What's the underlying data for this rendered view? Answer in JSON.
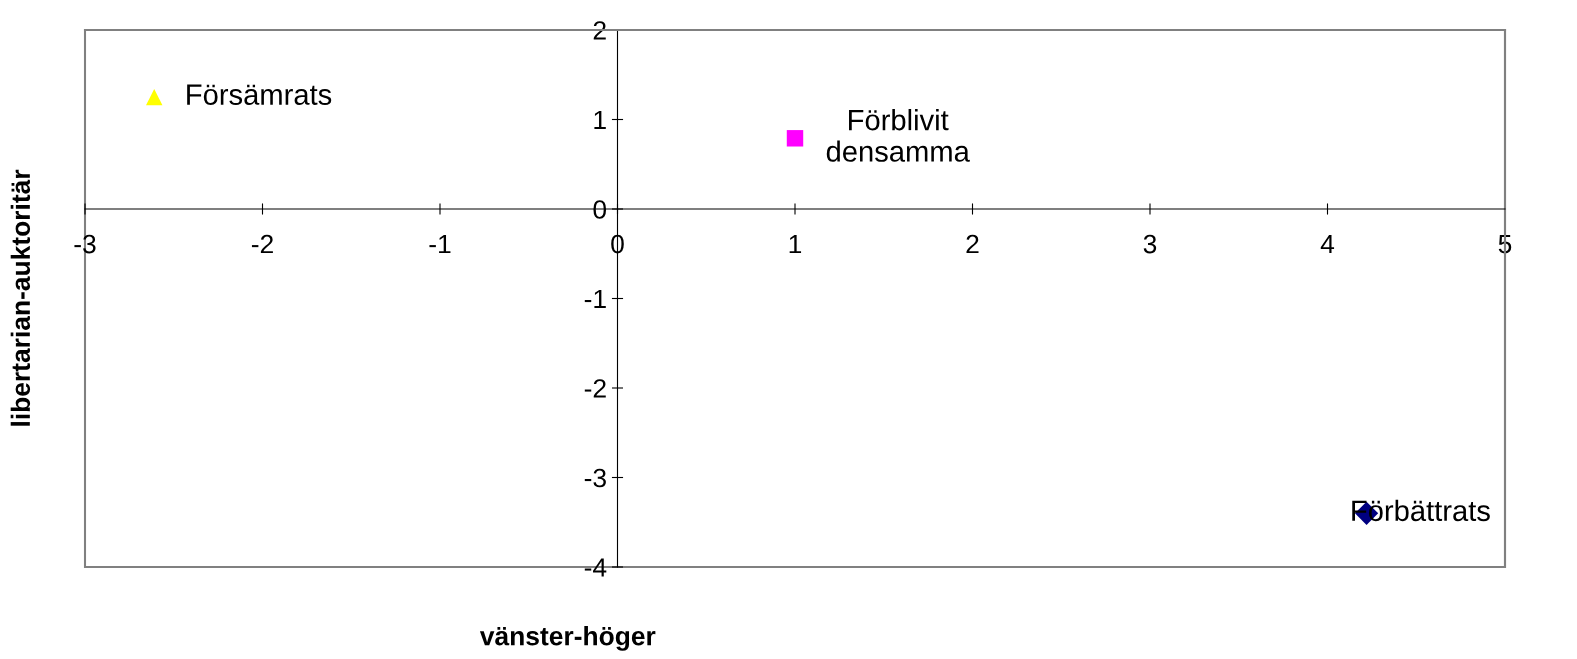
{
  "chart_data": {
    "type": "scatter",
    "xlabel": "vänster-höger",
    "ylabel": "libertarian-auktoritär",
    "xlim": [
      -3,
      5
    ],
    "xticks": [
      -3,
      -2,
      -1,
      0,
      1,
      2,
      3,
      4,
      5
    ],
    "ylim": [
      -4,
      2
    ],
    "yticks": [
      -4,
      -3,
      -2,
      -1,
      0,
      1,
      2
    ],
    "grid": false,
    "legend": false,
    "series": [
      {
        "name": "Försämrats",
        "color": "#ffff00",
        "marker": "triangle",
        "x": [
          -2.61
        ],
        "values": [
          1.25
        ]
      },
      {
        "name": "Förblivit\ndensamma",
        "color": "#ff00ff",
        "marker": "square",
        "x": [
          1.0
        ],
        "values": [
          0.79
        ]
      },
      {
        "name": "Förbättrats",
        "color": "#000080",
        "marker": "diamond",
        "x": [
          4.22
        ],
        "values": [
          -3.4
        ]
      }
    ]
  }
}
